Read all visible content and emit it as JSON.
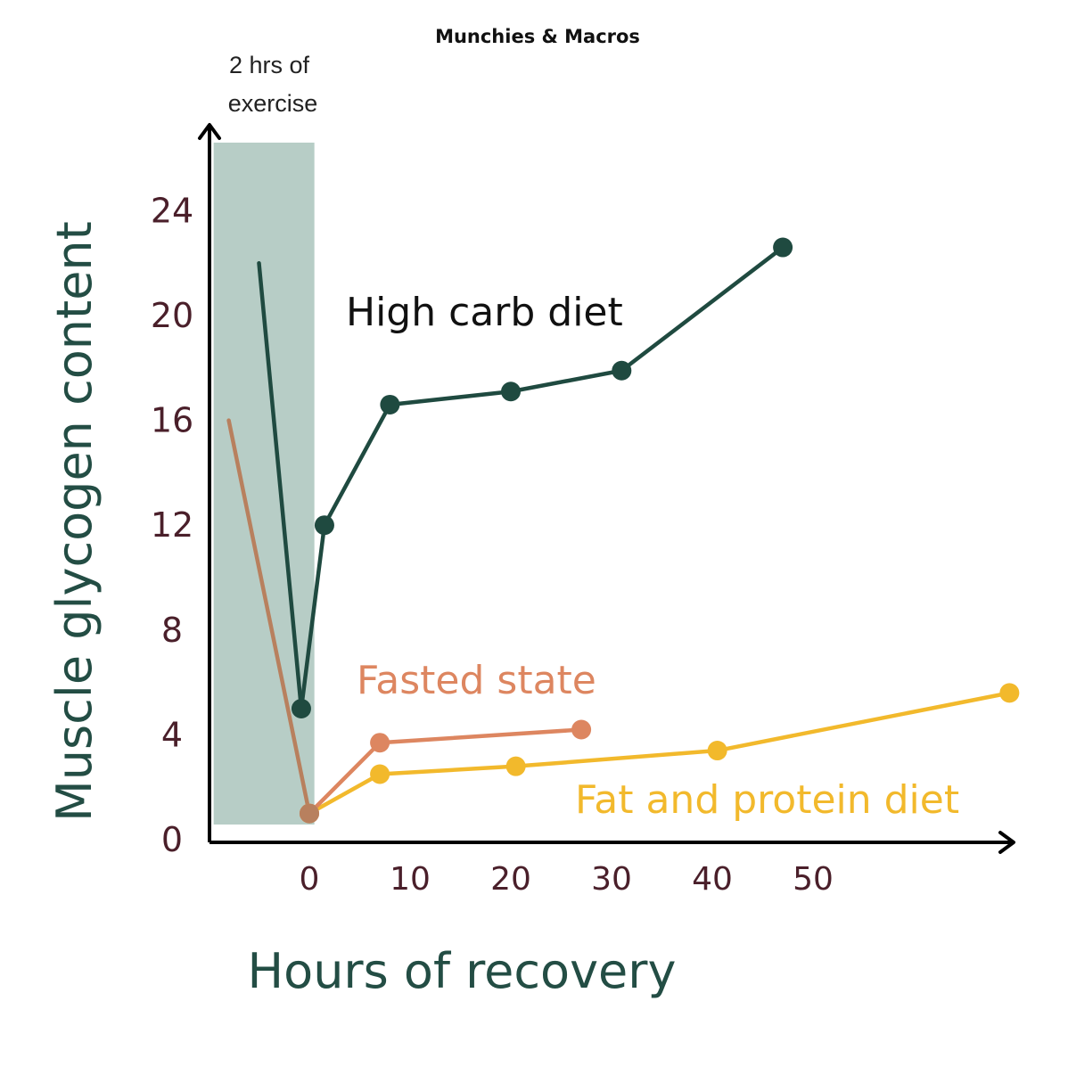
{
  "brand": "Munchies & Macros",
  "exercise_note": [
    "2 hrs of",
    "exercise"
  ],
  "colors": {
    "high_carb": "#1f4a40",
    "fasted": "#dd8660",
    "fasted_exercise": "#b8805e",
    "fat_protein": "#f2b92c",
    "shade": "#b7cdc6",
    "axis_title": "#234d44",
    "tick": "#4a1f2a"
  },
  "chart_data": {
    "type": "line",
    "xlabel": "Hours of recovery",
    "ylabel": "Muscle glycogen content",
    "xticks": [
      "0",
      "10",
      "20",
      "30",
      "40",
      "50"
    ],
    "yticks": [
      "0",
      "4",
      "8",
      "12",
      "16",
      "20",
      "24"
    ],
    "shaded_region": {
      "label": "2 hrs of exercise",
      "x": [
        -9.5,
        0.5
      ]
    },
    "series": [
      {
        "name": "High carb diet",
        "exercise_line": {
          "x": [
            -5,
            -0.8
          ],
          "y": [
            22,
            5
          ]
        },
        "x": [
          -0.8,
          1.5,
          8,
          20,
          31,
          47
        ],
        "y": [
          5,
          12,
          16.6,
          17.1,
          17.9,
          22.6
        ]
      },
      {
        "name": "Fasted state",
        "exercise_line": {
          "x": [
            -8,
            0
          ],
          "y": [
            16,
            1
          ]
        },
        "x": [
          0,
          7,
          27
        ],
        "y": [
          1,
          3.7,
          4.2
        ]
      },
      {
        "name": "Fat and protein diet",
        "x": [
          0,
          7,
          20.5,
          40.5,
          69.5
        ],
        "y": [
          1,
          2.5,
          2.8,
          3.4,
          5.6
        ]
      }
    ]
  }
}
